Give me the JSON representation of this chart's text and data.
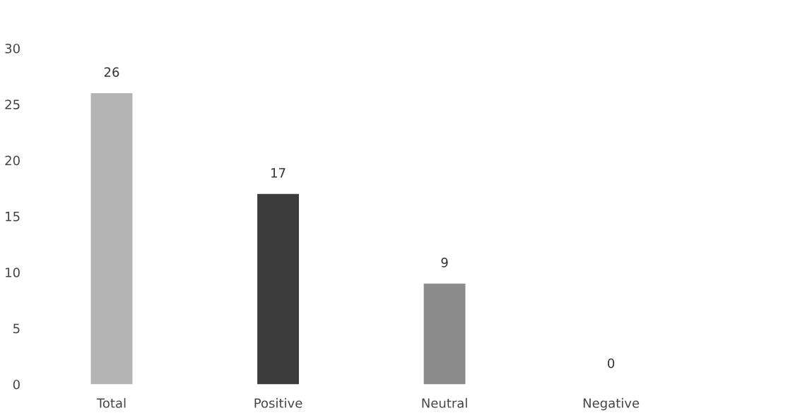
{
  "chart_data": {
    "type": "bar",
    "categories": [
      "Total",
      "Positive",
      "Neutral",
      "Negative"
    ],
    "values": [
      26,
      17,
      9,
      0
    ],
    "colors": [
      "#b4b4b4",
      "#3c3c3c",
      "#8c8c8c",
      "#8c8c8c"
    ],
    "ylim": [
      0,
      30
    ],
    "yticks": [
      0,
      5,
      10,
      15,
      20,
      25,
      30
    ],
    "data_labels": true,
    "grid": false,
    "legend": false
  }
}
